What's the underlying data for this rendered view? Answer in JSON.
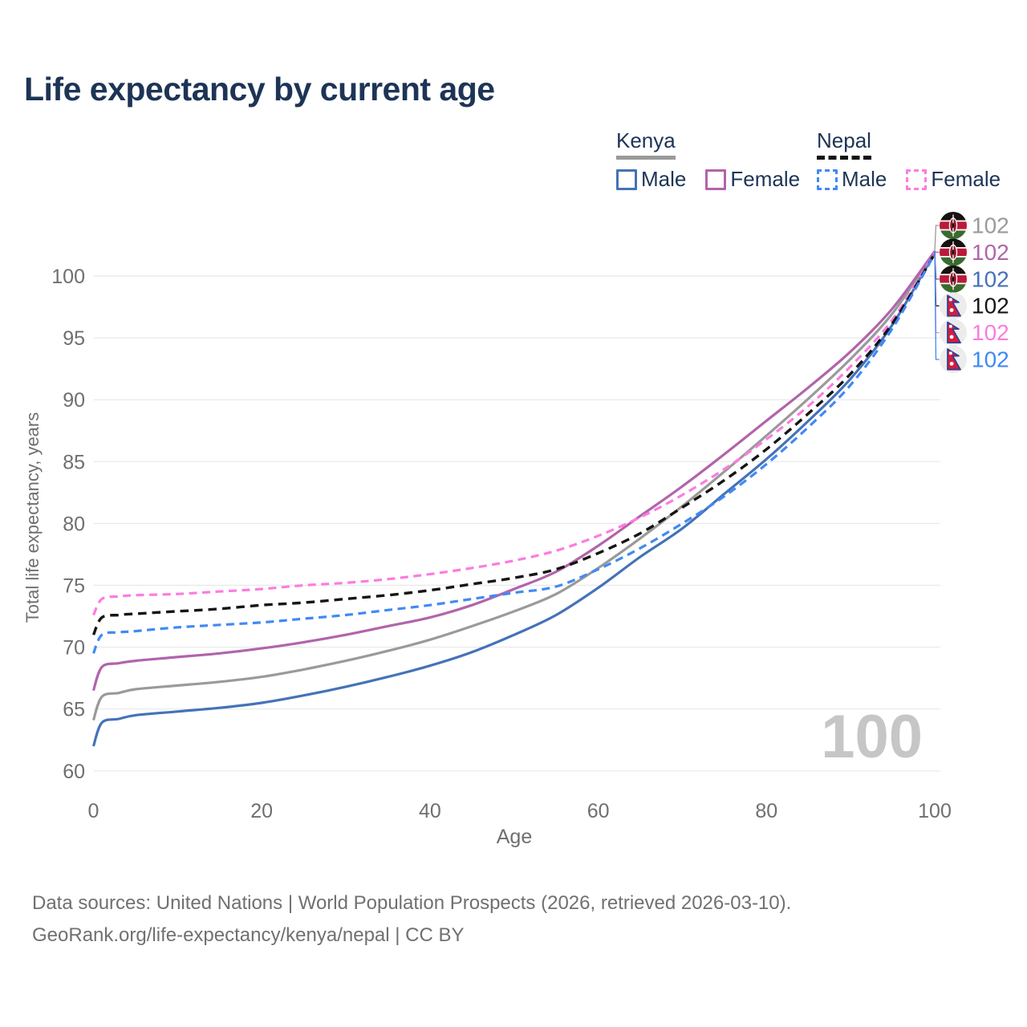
{
  "title": "Life expectancy by current age",
  "legend": {
    "groups": [
      {
        "id": "kenya",
        "label": "Kenya",
        "line_style": "solid",
        "underline_color": "#9a9a9a",
        "items": [
          {
            "series": "kenya-male",
            "label": "Male",
            "color": "#4472b8",
            "dashed": false
          },
          {
            "series": "kenya-female",
            "label": "Female",
            "color": "#b164ab",
            "dashed": false
          }
        ]
      },
      {
        "id": "nepal",
        "label": "Nepal",
        "line_style": "dashed",
        "underline_color": "#151515",
        "items": [
          {
            "series": "nepal-male",
            "label": "Male",
            "color": "#4189f5",
            "dashed": true
          },
          {
            "series": "nepal-female",
            "label": "Female",
            "color": "#fb7ce1",
            "dashed": true
          }
        ]
      }
    ]
  },
  "chart_data": {
    "type": "line",
    "title": "Life expectancy by current age",
    "xlabel": "Age",
    "ylabel": "Total life expectancy, years",
    "x_ticks": [
      0,
      20,
      40,
      60,
      80,
      100
    ],
    "y_ticks": [
      60,
      65,
      70,
      75,
      80,
      85,
      90,
      95,
      100
    ],
    "xlim": [
      0,
      100
    ],
    "ylim": [
      60,
      103
    ],
    "grid": "horizontal",
    "legend_position": "top-right",
    "x": [
      0,
      1,
      3,
      5,
      10,
      15,
      20,
      25,
      30,
      35,
      40,
      45,
      50,
      55,
      60,
      65,
      70,
      75,
      80,
      85,
      90,
      95,
      100
    ],
    "series": [
      {
        "id": "kenya-male",
        "name": "Kenya Male",
        "color": "#4472b8",
        "dash": null,
        "width": 3.2,
        "values": [
          62.0,
          63.9,
          64.2,
          64.5,
          64.8,
          65.1,
          65.5,
          66.1,
          66.8,
          67.6,
          68.5,
          69.6,
          71.0,
          72.6,
          74.8,
          77.3,
          79.6,
          82.4,
          85.2,
          88.3,
          91.7,
          96.1,
          101.9
        ]
      },
      {
        "id": "kenya-both",
        "name": "Kenya (combined)",
        "color": "#9a9a9a",
        "dash": null,
        "width": 3.2,
        "values": [
          64.1,
          66.0,
          66.3,
          66.6,
          66.9,
          67.2,
          67.6,
          68.2,
          68.9,
          69.7,
          70.6,
          71.7,
          72.9,
          74.3,
          76.4,
          78.8,
          81.4,
          84.2,
          87.1,
          90.1,
          93.3,
          97.0,
          102.0
        ]
      },
      {
        "id": "kenya-female",
        "name": "Kenya Female",
        "color": "#b164ab",
        "dash": null,
        "width": 3.2,
        "values": [
          66.5,
          68.4,
          68.7,
          68.9,
          69.2,
          69.5,
          69.9,
          70.4,
          71.0,
          71.7,
          72.4,
          73.4,
          74.7,
          76.1,
          78.2,
          80.6,
          83.0,
          85.6,
          88.3,
          91.0,
          93.9,
          97.4,
          102.0
        ]
      },
      {
        "id": "nepal-female",
        "name": "Nepal Female",
        "color": "#fb7ce1",
        "dash": "10 6.5",
        "width": 3.2,
        "values": [
          72.6,
          73.9,
          74.1,
          74.2,
          74.3,
          74.5,
          74.7,
          75.0,
          75.2,
          75.5,
          75.9,
          76.4,
          77.0,
          77.8,
          79.0,
          80.5,
          82.3,
          84.4,
          86.8,
          89.5,
          92.7,
          96.5,
          101.9
        ]
      },
      {
        "id": "nepal-both",
        "name": "Nepal (combined)",
        "color": "#151515",
        "dash": "10.5 7",
        "width": 3.4,
        "values": [
          71.0,
          72.4,
          72.6,
          72.7,
          72.9,
          73.1,
          73.4,
          73.6,
          73.9,
          74.2,
          74.6,
          75.1,
          75.6,
          76.3,
          77.6,
          79.2,
          81.3,
          83.5,
          86.0,
          88.9,
          92.1,
          96.2,
          101.8
        ]
      },
      {
        "id": "nepal-male",
        "name": "Nepal Male",
        "color": "#4189f5",
        "dash": "10 6.5",
        "width": 3.2,
        "values": [
          69.5,
          71.0,
          71.2,
          71.3,
          71.6,
          71.8,
          72.0,
          72.3,
          72.6,
          73.0,
          73.4,
          73.9,
          74.4,
          74.9,
          76.3,
          78.0,
          80.0,
          82.2,
          84.8,
          87.8,
          91.2,
          95.8,
          101.8
        ]
      }
    ],
    "end_labels": [
      {
        "series": "kenya-both",
        "flag": "kenya",
        "value": "102"
      },
      {
        "series": "kenya-female",
        "flag": "kenya",
        "value": "102"
      },
      {
        "series": "kenya-male",
        "flag": "kenya",
        "value": "102"
      },
      {
        "series": "nepal-both",
        "flag": "nepal",
        "value": "102"
      },
      {
        "series": "nepal-female",
        "flag": "nepal",
        "value": "102"
      },
      {
        "series": "nepal-male",
        "flag": "nepal",
        "value": "102"
      }
    ]
  },
  "watermark": "100",
  "footer": {
    "line1": "Data sources: United Nations | World Population Prospects (2026, retrieved 2026-03-10).",
    "line2": "GeoRank.org/life-expectancy/kenya/nepal | CC BY"
  },
  "colors": {
    "title_text": "#1d3456",
    "axis_text": "#6f6f6f",
    "gridline": "#ebebeb",
    "watermark": "#c6c6c6",
    "footer_text": "#707070"
  }
}
